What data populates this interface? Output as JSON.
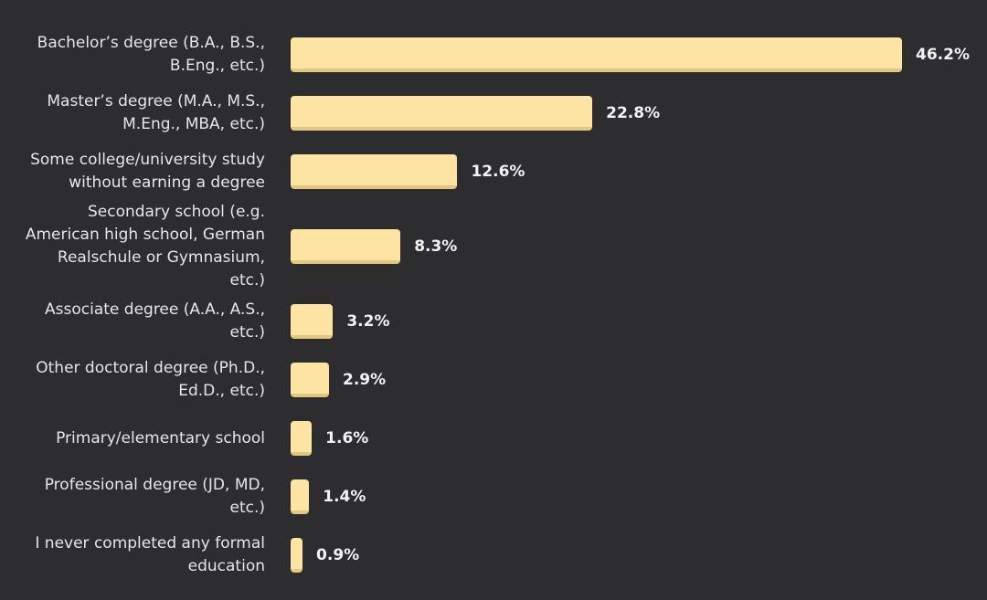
{
  "chart_data": {
    "type": "bar",
    "orientation": "horizontal",
    "color": "#fde4a5",
    "categories": [
      "Bachelor’s degree (B.A., B.S., B.Eng., etc.)",
      "Master’s degree (M.A., M.S., M.Eng., MBA, etc.)",
      "Some college/university study without earning a degree",
      "Secondary school (e.g. American high school, German Realschule or Gymnasium, etc.)",
      "Associate degree (A.A., A.S., etc.)",
      "Other doctoral degree (Ph.D., Ed.D., etc.)",
      "Primary/elementary school",
      "Professional degree (JD, MD, etc.)",
      "I never completed any formal education"
    ],
    "values": [
      46.2,
      22.8,
      12.6,
      8.3,
      3.2,
      2.9,
      1.6,
      1.4,
      0.9
    ],
    "value_labels": [
      "46.2%",
      "22.8%",
      "12.6%",
      "8.3%",
      "3.2%",
      "2.9%",
      "1.6%",
      "1.4%",
      "0.9%"
    ]
  }
}
